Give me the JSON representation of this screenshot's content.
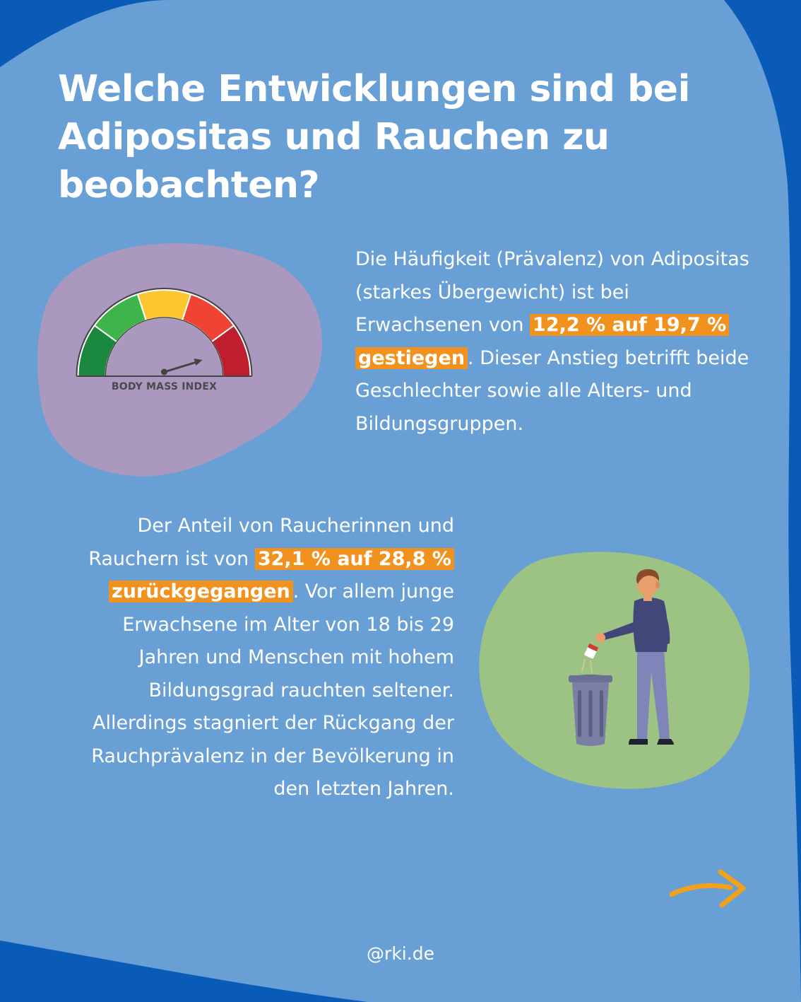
{
  "title": "Welche Entwicklungen sind bei Adipositas und Rauchen zu beobachten?",
  "obesity": {
    "text_before": "Die Häufigkeit (Prävalenz) von Adipositas (starkes Übergewicht) ist bei Erwachsenen von ",
    "highlight": "12,2 % auf 19,7 % gestiegen",
    "text_after": ". Dieser Anstieg betrifft beide Geschlechter sowie alle Alters- und Bildungsgruppen.",
    "gauge_label": "BODY MASS INDEX",
    "gauge_icon": "bmi-gauge-icon"
  },
  "smoking": {
    "text_before": "Der Anteil von Raucherinnen und Rauchern ist von ",
    "highlight": "32,1 % auf 28,8 % zurückgegangen",
    "text_after": ". Vor allem junge Erwachsene im Alter von 18 bis 29 Jahren und Menschen mit hohem Bildungsgrad rauchten seltener. Allerdings stagniert der Rückgang der Rauchprävalenz in der Bevölkerung in den letzten Jahren.",
    "illustration_icon": "person-discarding-cigarettes-icon"
  },
  "footer": "@rki.de",
  "next_icon": "arrow-right-icon",
  "colors": {
    "background_light": "#689fd5",
    "background_dark": "#0a5bb8",
    "highlight": "#f0921d",
    "purple_blob": "#ab98bf",
    "green_blob": "#9dc384",
    "arrow": "#f0a21d"
  }
}
